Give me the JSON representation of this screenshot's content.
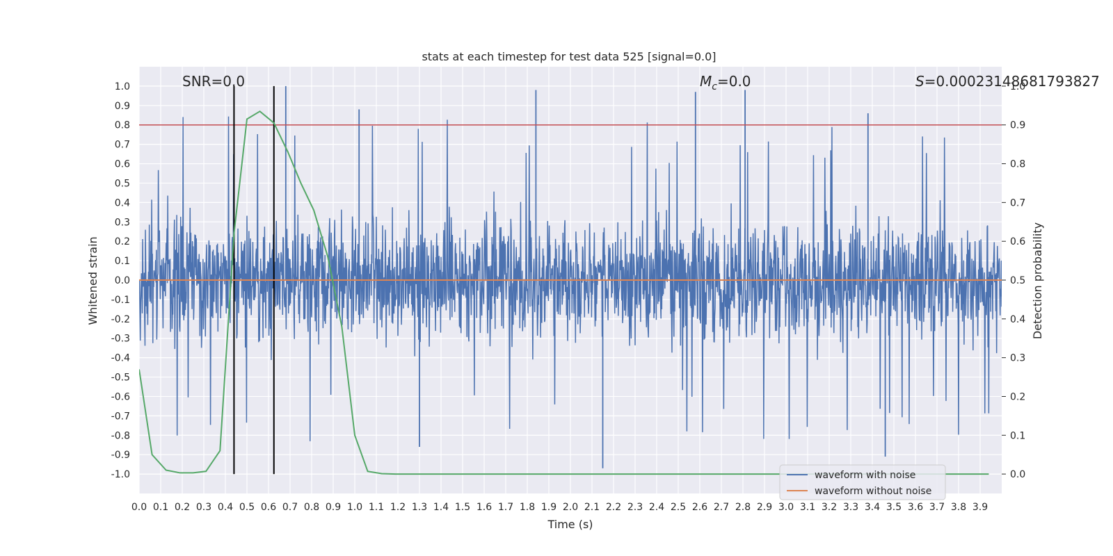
{
  "chart_data": {
    "type": "line",
    "title": "stats at each timestep for test data 525 [signal=0.0]",
    "xlabel": "Time (s)",
    "ylabel": "Whitened strain",
    "y2label": "Detection probability",
    "xlim": [
      0.0,
      4.0
    ],
    "ylim": [
      -1.1,
      1.1
    ],
    "y2lim": [
      -0.05,
      1.05
    ],
    "x_ticks": [
      "0.0",
      "0.1",
      "0.2",
      "0.3",
      "0.4",
      "0.5",
      "0.6",
      "0.7",
      "0.8",
      "0.9",
      "1.0",
      "1.1",
      "1.2",
      "1.3",
      "1.4",
      "1.5",
      "1.6",
      "1.7",
      "1.8",
      "1.9",
      "2.0",
      "2.1",
      "2.2",
      "2.3",
      "2.4",
      "2.5",
      "2.6",
      "2.7",
      "2.8",
      "2.9",
      "3.0",
      "3.1",
      "3.2",
      "3.3",
      "3.4",
      "3.5",
      "3.6",
      "3.7",
      "3.8",
      "3.9"
    ],
    "y_ticks": [
      "1.0",
      "0.9",
      "0.8",
      "0.7",
      "0.6",
      "0.5",
      "0.4",
      "0.3",
      "0.2",
      "0.1",
      "0.0",
      "-0.1",
      "-0.2",
      "-0.3",
      "-0.4",
      "-0.5",
      "-0.6",
      "-0.7",
      "-0.8",
      "-0.9",
      "-1.0"
    ],
    "y2_ticks": [
      "1.0",
      "0.9",
      "0.8",
      "0.7",
      "0.6",
      "0.5",
      "0.4",
      "0.3",
      "0.2",
      "0.1",
      "0.0"
    ],
    "annotations": {
      "snr": "SNR=0.0",
      "mc_symbol": "M",
      "mc_sub": "c",
      "mc_value": "=0.0",
      "s_symbol": "S",
      "s_value": "=0.00023148681793827"
    },
    "grid": true,
    "legend_position": "lower-right",
    "legend": [
      {
        "label": "waveform with noise",
        "color": "#4c72b0"
      },
      {
        "label": "waveform without noise",
        "color": "#dd8452"
      }
    ],
    "series": [
      {
        "name": "waveform with noise",
        "color": "#4c72b0",
        "axis": "left",
        "style": "dense noise approx. ±0.4, peaks up to ±1.0",
        "notable_peaks": [
          {
            "x": 0.68,
            "y": 1.0
          },
          {
            "x": 1.02,
            "y": 0.88
          },
          {
            "x": 1.84,
            "y": 0.98
          },
          {
            "x": 2.58,
            "y": 0.97
          },
          {
            "x": 2.81,
            "y": 0.98
          },
          {
            "x": 3.38,
            "y": 0.86
          },
          {
            "x": 2.15,
            "y": -0.97
          },
          {
            "x": 3.46,
            "y": -0.91
          },
          {
            "x": 1.3,
            "y": -0.86
          }
        ]
      },
      {
        "name": "waveform without noise",
        "color": "#dd8452",
        "axis": "left",
        "x": [
          0.0,
          4.0
        ],
        "y": [
          0.0,
          0.0
        ]
      },
      {
        "name": "",
        "color": "#55a868",
        "axis": "right",
        "x": [
          0.0,
          0.06,
          0.125,
          0.19,
          0.25,
          0.31,
          0.375,
          0.44,
          0.5,
          0.56,
          0.625,
          0.69,
          0.75,
          0.81,
          0.875,
          0.94,
          1.0,
          1.06,
          1.125,
          1.19,
          1.25,
          3.94
        ],
        "y": [
          0.27,
          0.05,
          0.01,
          0.003,
          0.003,
          0.007,
          0.06,
          0.62,
          0.915,
          0.935,
          0.905,
          0.83,
          0.75,
          0.68,
          0.56,
          0.38,
          0.1,
          0.007,
          0.001,
          0.0,
          0.0,
          0.0
        ]
      }
    ],
    "reference_lines": [
      {
        "orientation": "horizontal",
        "axis": "right",
        "value": 0.9,
        "color": "#c44e52"
      },
      {
        "orientation": "vertical",
        "value": 0.44,
        "color": "#000000",
        "ylim": [
          -1.0,
          1.0
        ]
      },
      {
        "orientation": "vertical",
        "value": 0.625,
        "color": "#000000",
        "ylim": [
          -1.0,
          1.0
        ]
      }
    ]
  }
}
